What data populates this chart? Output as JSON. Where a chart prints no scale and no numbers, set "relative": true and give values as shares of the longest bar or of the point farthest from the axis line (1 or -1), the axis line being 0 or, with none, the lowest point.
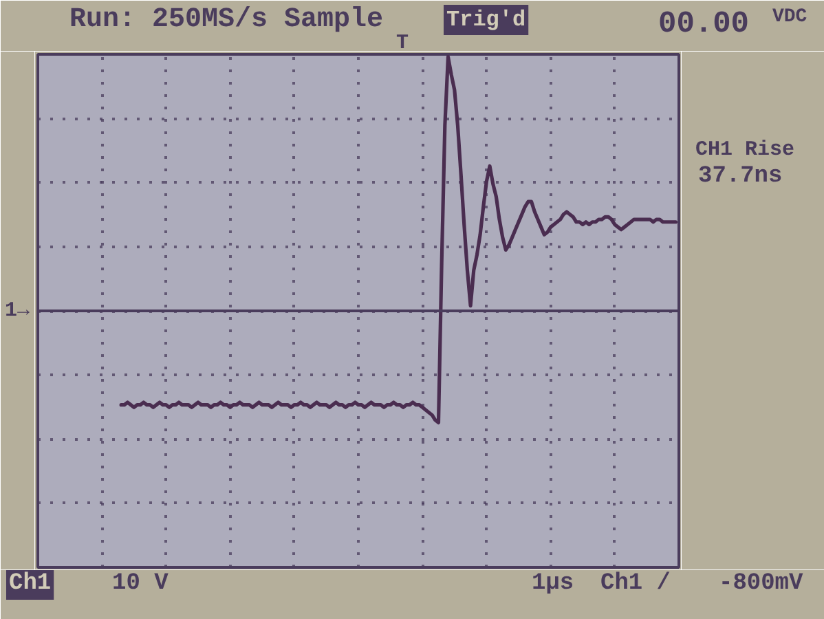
{
  "chart_data": {
    "type": "line",
    "relative": true,
    "categories": [
      null,
      null,
      null,
      null,
      null,
      null,
      null,
      null,
      null,
      null,
      null,
      null,
      null,
      null,
      null,
      null,
      null,
      null,
      null,
      null,
      null,
      null,
      null,
      null,
      null,
      null,
      null,
      null,
      null,
      null,
      null,
      null,
      null,
      null,
      null,
      null,
      null,
      null,
      null,
      null,
      null,
      null,
      null,
      null,
      null,
      null,
      null,
      null,
      null,
      null,
      null,
      null,
      null,
      null,
      null,
      null,
      null,
      null,
      null,
      null,
      null,
      null,
      null,
      null,
      null,
      null,
      null,
      null,
      null,
      null,
      null,
      null,
      null,
      null,
      null,
      null,
      null,
      null,
      null,
      null,
      null,
      null,
      null,
      null,
      null,
      null,
      null,
      null,
      null,
      null,
      null,
      null,
      null,
      null,
      null,
      null,
      null,
      null,
      null,
      null,
      null,
      null,
      null,
      null,
      null,
      null,
      null,
      null,
      null,
      null,
      null,
      null,
      null,
      null,
      null,
      null,
      null,
      null,
      null,
      null,
      null,
      null,
      null,
      null,
      null,
      null,
      null,
      null,
      null,
      null,
      null,
      null,
      null,
      null,
      null,
      null,
      null,
      null,
      null,
      null,
      null,
      null,
      null,
      null,
      null,
      null,
      null,
      null,
      null,
      null,
      null,
      null,
      null,
      null,
      null,
      null,
      null,
      null,
      null,
      null,
      null,
      null,
      null,
      null,
      null,
      null,
      null,
      null,
      null,
      null,
      null,
      null,
      null,
      null,
      null,
      null,
      null,
      null,
      null,
      null,
      null,
      null,
      null,
      null,
      null,
      null,
      null,
      null,
      null,
      null,
      null,
      null,
      null,
      null,
      null,
      null,
      null,
      null,
      null,
      null,
      null
    ],
    "series": [
      {
        "color": "#4a2d50",
        "values": [
          null,
          null,
          null,
          null,
          null,
          null,
          null,
          null,
          null,
          null,
          null,
          null,
          null,
          null,
          null,
          null,
          null,
          null,
          null,
          null,
          null,
          null,
          null,
          null,
          null,
          null,
          -0.37,
          -0.37,
          -0.36,
          -0.37,
          -0.38,
          -0.37,
          -0.37,
          -0.36,
          -0.37,
          -0.37,
          -0.38,
          -0.37,
          -0.36,
          -0.37,
          -0.37,
          -0.38,
          -0.37,
          -0.37,
          -0.36,
          -0.37,
          -0.37,
          -0.37,
          -0.38,
          -0.37,
          -0.36,
          -0.37,
          -0.37,
          -0.37,
          -0.38,
          -0.37,
          -0.37,
          -0.36,
          -0.37,
          -0.37,
          -0.38,
          -0.37,
          -0.37,
          -0.36,
          -0.37,
          -0.37,
          -0.37,
          -0.38,
          -0.37,
          -0.36,
          -0.37,
          -0.37,
          -0.37,
          -0.38,
          -0.37,
          -0.36,
          -0.37,
          -0.37,
          -0.37,
          -0.38,
          -0.37,
          -0.37,
          -0.36,
          -0.37,
          -0.37,
          -0.38,
          -0.37,
          -0.36,
          -0.37,
          -0.37,
          -0.37,
          -0.38,
          -0.37,
          -0.36,
          -0.37,
          -0.37,
          -0.38,
          -0.37,
          -0.37,
          -0.36,
          -0.37,
          -0.37,
          -0.38,
          -0.37,
          -0.36,
          -0.37,
          -0.37,
          -0.37,
          -0.38,
          -0.37,
          -0.37,
          -0.36,
          -0.37,
          -0.37,
          -0.38,
          -0.37,
          -0.37,
          -0.36,
          -0.37,
          -0.37,
          -0.38,
          -0.39,
          -0.4,
          -0.41,
          -0.43,
          -0.44,
          0.19,
          0.73,
          1.0,
          0.93,
          0.87,
          0.73,
          0.54,
          0.34,
          0.16,
          0.02,
          0.16,
          0.22,
          0.3,
          0.41,
          0.51,
          0.57,
          0.5,
          0.45,
          0.36,
          0.29,
          0.24,
          0.26,
          0.29,
          0.32,
          0.35,
          0.38,
          0.41,
          0.43,
          0.43,
          0.39,
          0.36,
          0.33,
          0.3,
          0.31,
          0.33,
          0.34,
          0.35,
          0.36,
          0.38,
          0.39,
          0.38,
          0.37,
          0.35,
          0.35,
          0.34,
          0.35,
          0.34,
          0.35,
          0.35,
          0.36,
          0.36,
          0.37,
          0.37,
          0.36,
          0.34,
          0.33,
          0.32,
          0.33,
          0.34,
          0.35,
          0.36,
          0.36,
          0.36,
          0.36,
          0.36,
          0.36,
          0.35,
          0.36,
          0.36,
          0.35,
          0.35,
          0.35,
          0.35,
          0.35,
          null
        ]
      }
    ],
    "grid": true,
    "ref_lines": [
      {
        "axis": "y",
        "value": 0,
        "label": "1→"
      }
    ],
    "annotations": [
      "Run: 250MS/s Sample",
      "Trig'd",
      "00.00",
      "VDC",
      "CH1 Rise",
      "37.7ns",
      "Ch1",
      "10 V",
      "1µs",
      "Ch1 /",
      "-800mV",
      "T"
    ]
  }
}
